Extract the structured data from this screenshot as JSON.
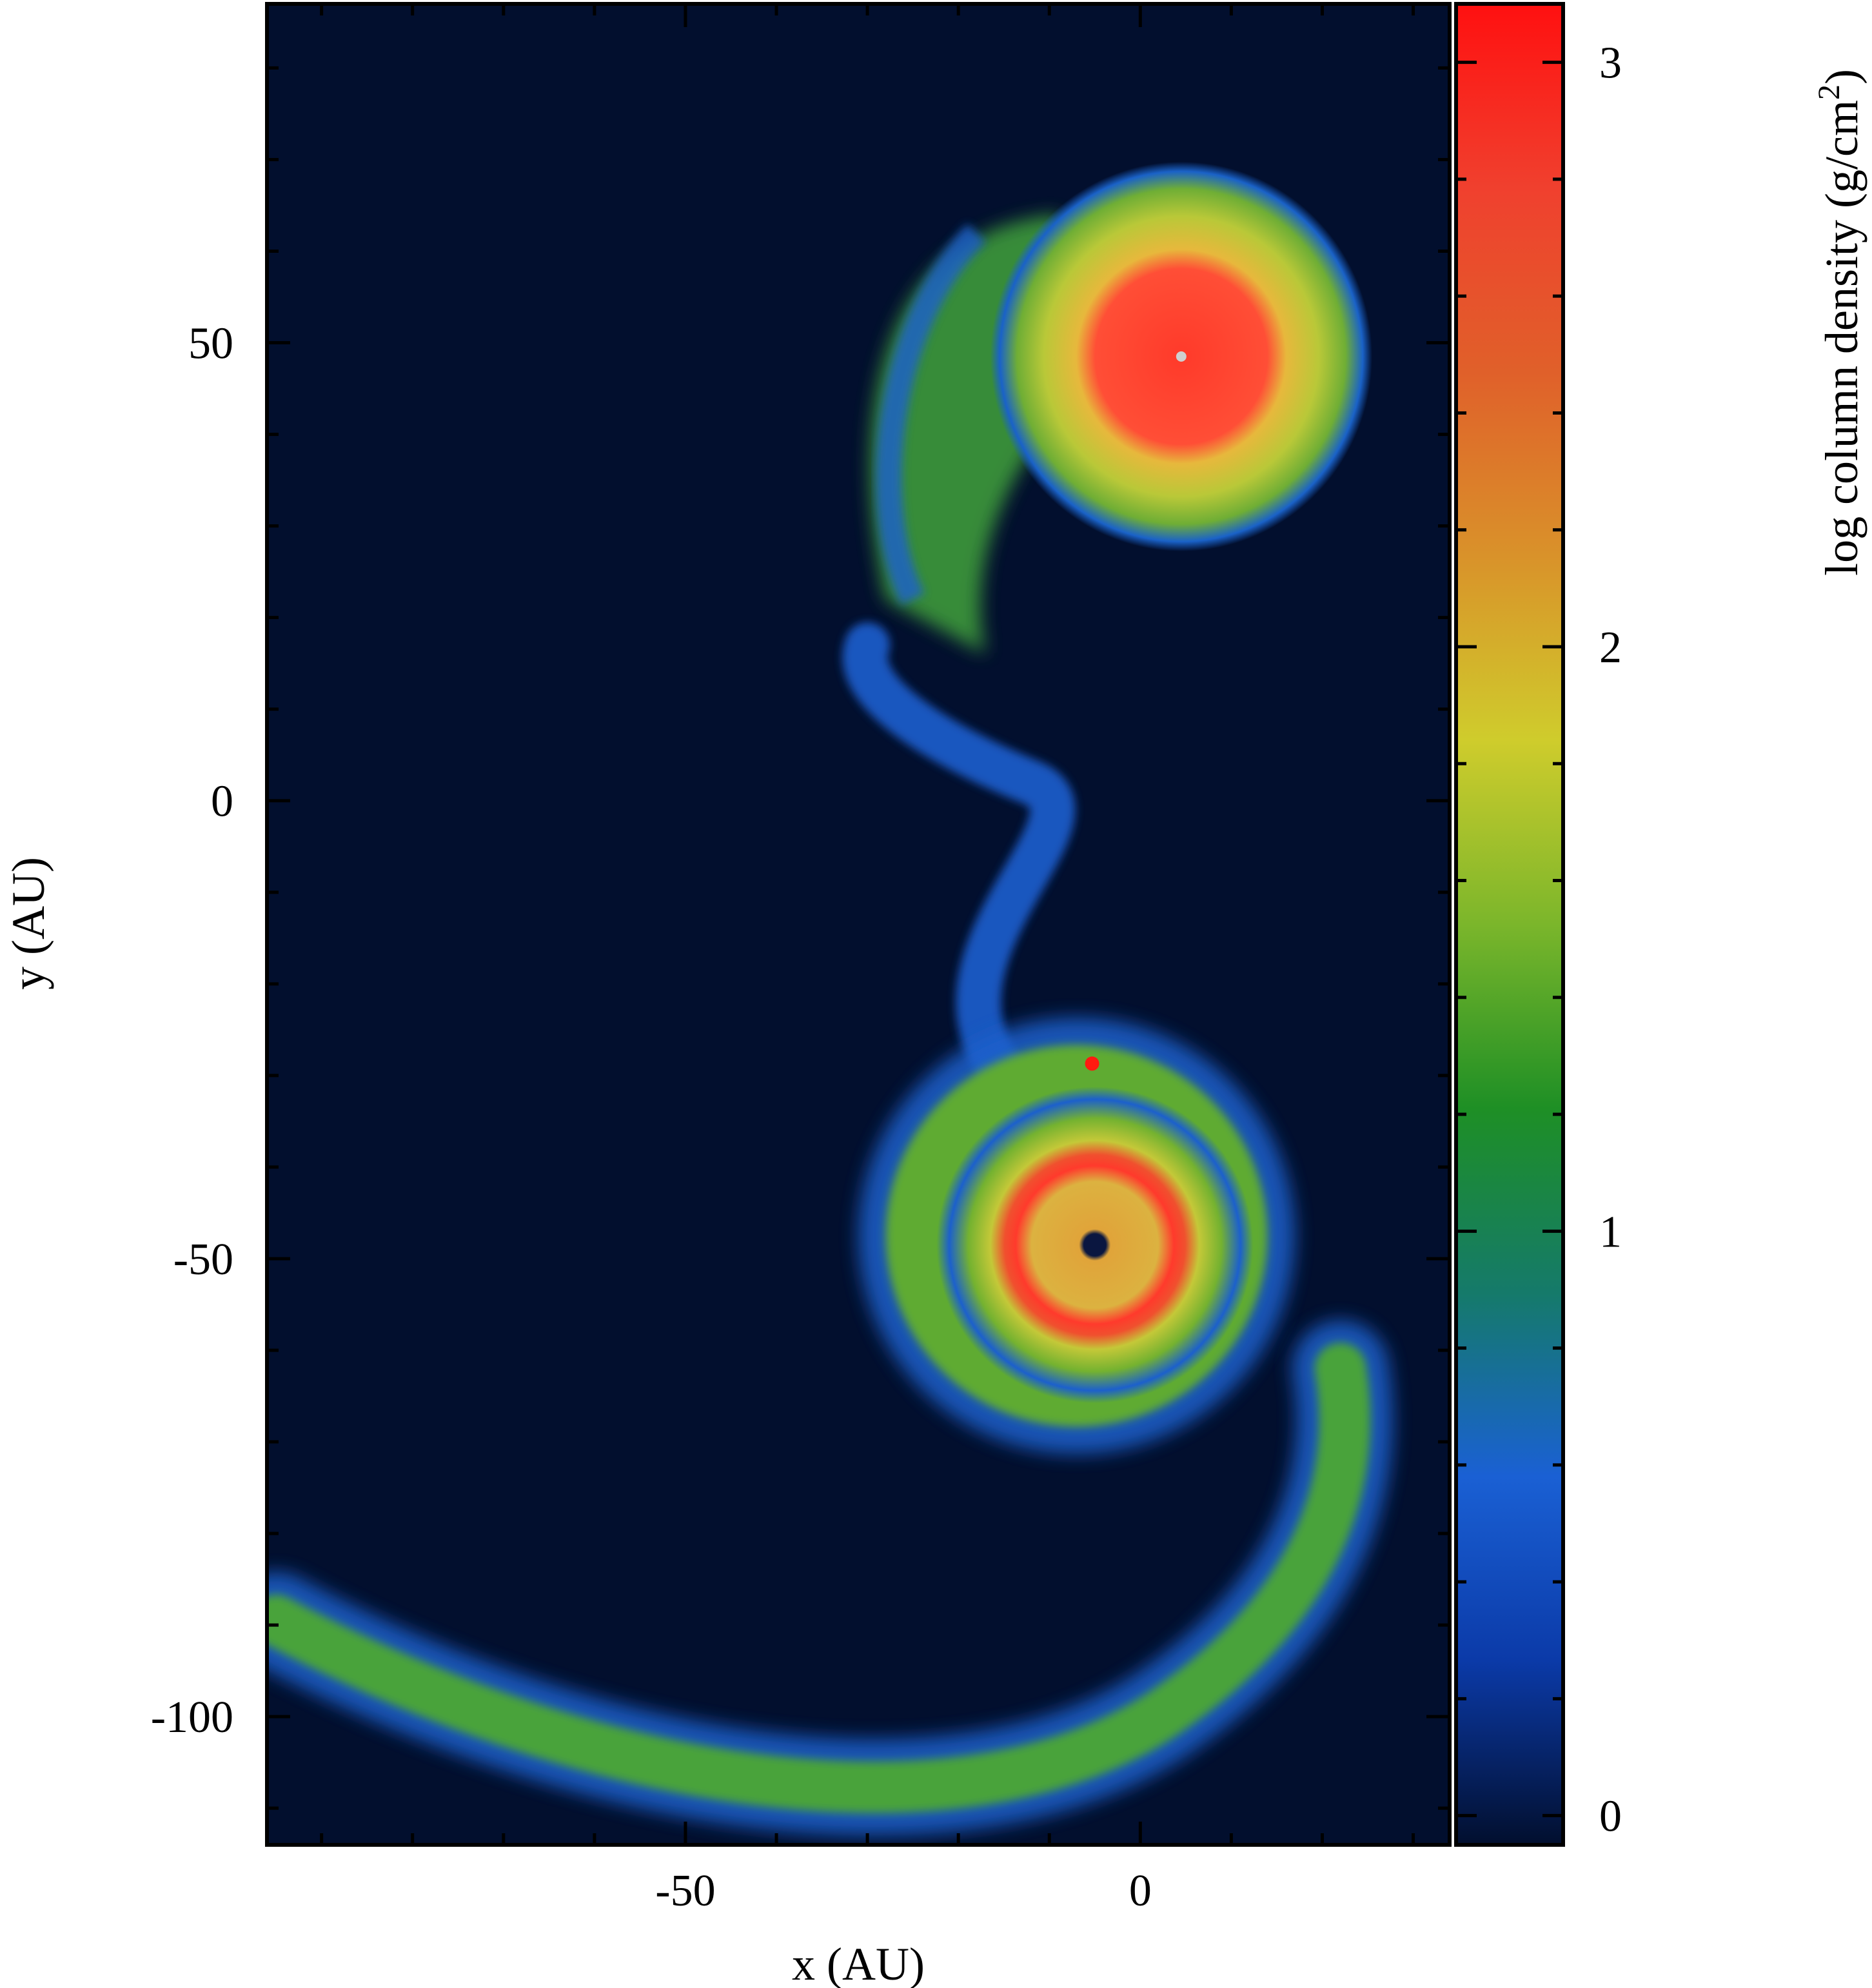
{
  "chart_data": {
    "type": "heatmap",
    "title": "",
    "xlabel": "x (AU)",
    "ylabel": "y (AU)",
    "xlim": [
      -96,
      34
    ],
    "ylim": [
      -114,
      87
    ],
    "x_ticks": [
      -50,
      0
    ],
    "x_tick_labels": [
      "-50",
      "0"
    ],
    "y_ticks": [
      -100,
      -50,
      0,
      50
    ],
    "y_tick_labels": [
      "-100",
      "-50",
      "0",
      "50"
    ],
    "colorbar": {
      "label": "log column density (g/cm",
      "label_sup": "2",
      "label_close": ")",
      "range": [
        -0.05,
        3.1
      ],
      "ticks": [
        0,
        1,
        2,
        3
      ],
      "tick_labels": [
        "0",
        "1",
        "2",
        "3"
      ],
      "colors": [
        "#020f2e",
        "#0b3aa8",
        "#1a60d4",
        "#157a6a",
        "#1e8f25",
        "#7bb62b",
        "#cfcc2c",
        "#d9922a",
        "#e0602a",
        "#f0402e",
        "#ff1010"
      ]
    },
    "background_color": "#020f2e",
    "features": [
      {
        "name": "upper disc",
        "center": [
          4.5,
          48.5
        ],
        "radius": 21,
        "peak": 2.9
      },
      {
        "name": "lower disc",
        "center": [
          -5,
          -48.5
        ],
        "radius": 12,
        "peak": 2.8
      },
      {
        "name": "lower companion",
        "center": [
          -5.3,
          -28.7
        ],
        "peak": 3.0
      },
      {
        "name": "tidal arm",
        "from": [
          -95,
          -89.5
        ],
        "to": [
          22,
          -62
        ],
        "peak": 1.4
      },
      {
        "name": "bridge",
        "from": [
          -13,
          -32
        ],
        "to": [
          -30,
          17
        ],
        "peak": 0.6
      }
    ],
    "grid": false,
    "legend": "none"
  }
}
